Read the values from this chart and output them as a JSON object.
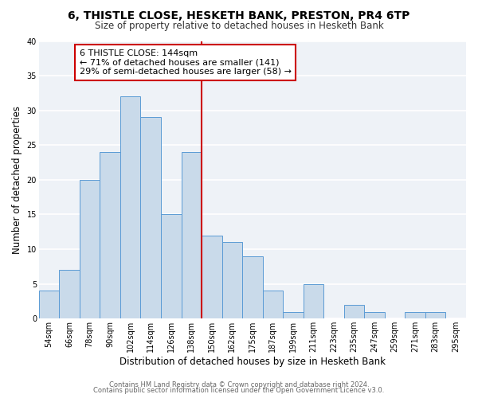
{
  "title1": "6, THISTLE CLOSE, HESKETH BANK, PRESTON, PR4 6TP",
  "title2": "Size of property relative to detached houses in Hesketh Bank",
  "xlabel": "Distribution of detached houses by size in Hesketh Bank",
  "ylabel": "Number of detached properties",
  "footer1": "Contains HM Land Registry data © Crown copyright and database right 2024.",
  "footer2": "Contains public sector information licensed under the Open Government Licence v3.0.",
  "bin_labels": [
    "54sqm",
    "66sqm",
    "78sqm",
    "90sqm",
    "102sqm",
    "114sqm",
    "126sqm",
    "138sqm",
    "150sqm",
    "162sqm",
    "175sqm",
    "187sqm",
    "199sqm",
    "211sqm",
    "223sqm",
    "235sqm",
    "247sqm",
    "259sqm",
    "271sqm",
    "283sqm",
    "295sqm"
  ],
  "bin_values": [
    4,
    7,
    20,
    24,
    32,
    29,
    15,
    24,
    12,
    11,
    9,
    4,
    1,
    5,
    0,
    2,
    1,
    0,
    1,
    1,
    0
  ],
  "bar_color": "#c9daea",
  "bar_edge_color": "#5b9bd5",
  "vline_color": "#cc0000",
  "annotation_text": "6 THISTLE CLOSE: 144sqm\n← 71% of detached houses are smaller (141)\n29% of semi-detached houses are larger (58) →",
  "annotation_box_color": "#ffffff",
  "annotation_box_edge_color": "#cc0000",
  "ylim": [
    0,
    40
  ],
  "yticks": [
    0,
    5,
    10,
    15,
    20,
    25,
    30,
    35,
    40
  ],
  "background_color": "#ffffff",
  "plot_background_color": "#eef2f7",
  "grid_color": "#ffffff",
  "title1_fontsize": 10,
  "title2_fontsize": 8.5,
  "axis_label_fontsize": 8.5,
  "tick_fontsize": 7,
  "footer_fontsize": 6,
  "annotation_fontsize": 8
}
